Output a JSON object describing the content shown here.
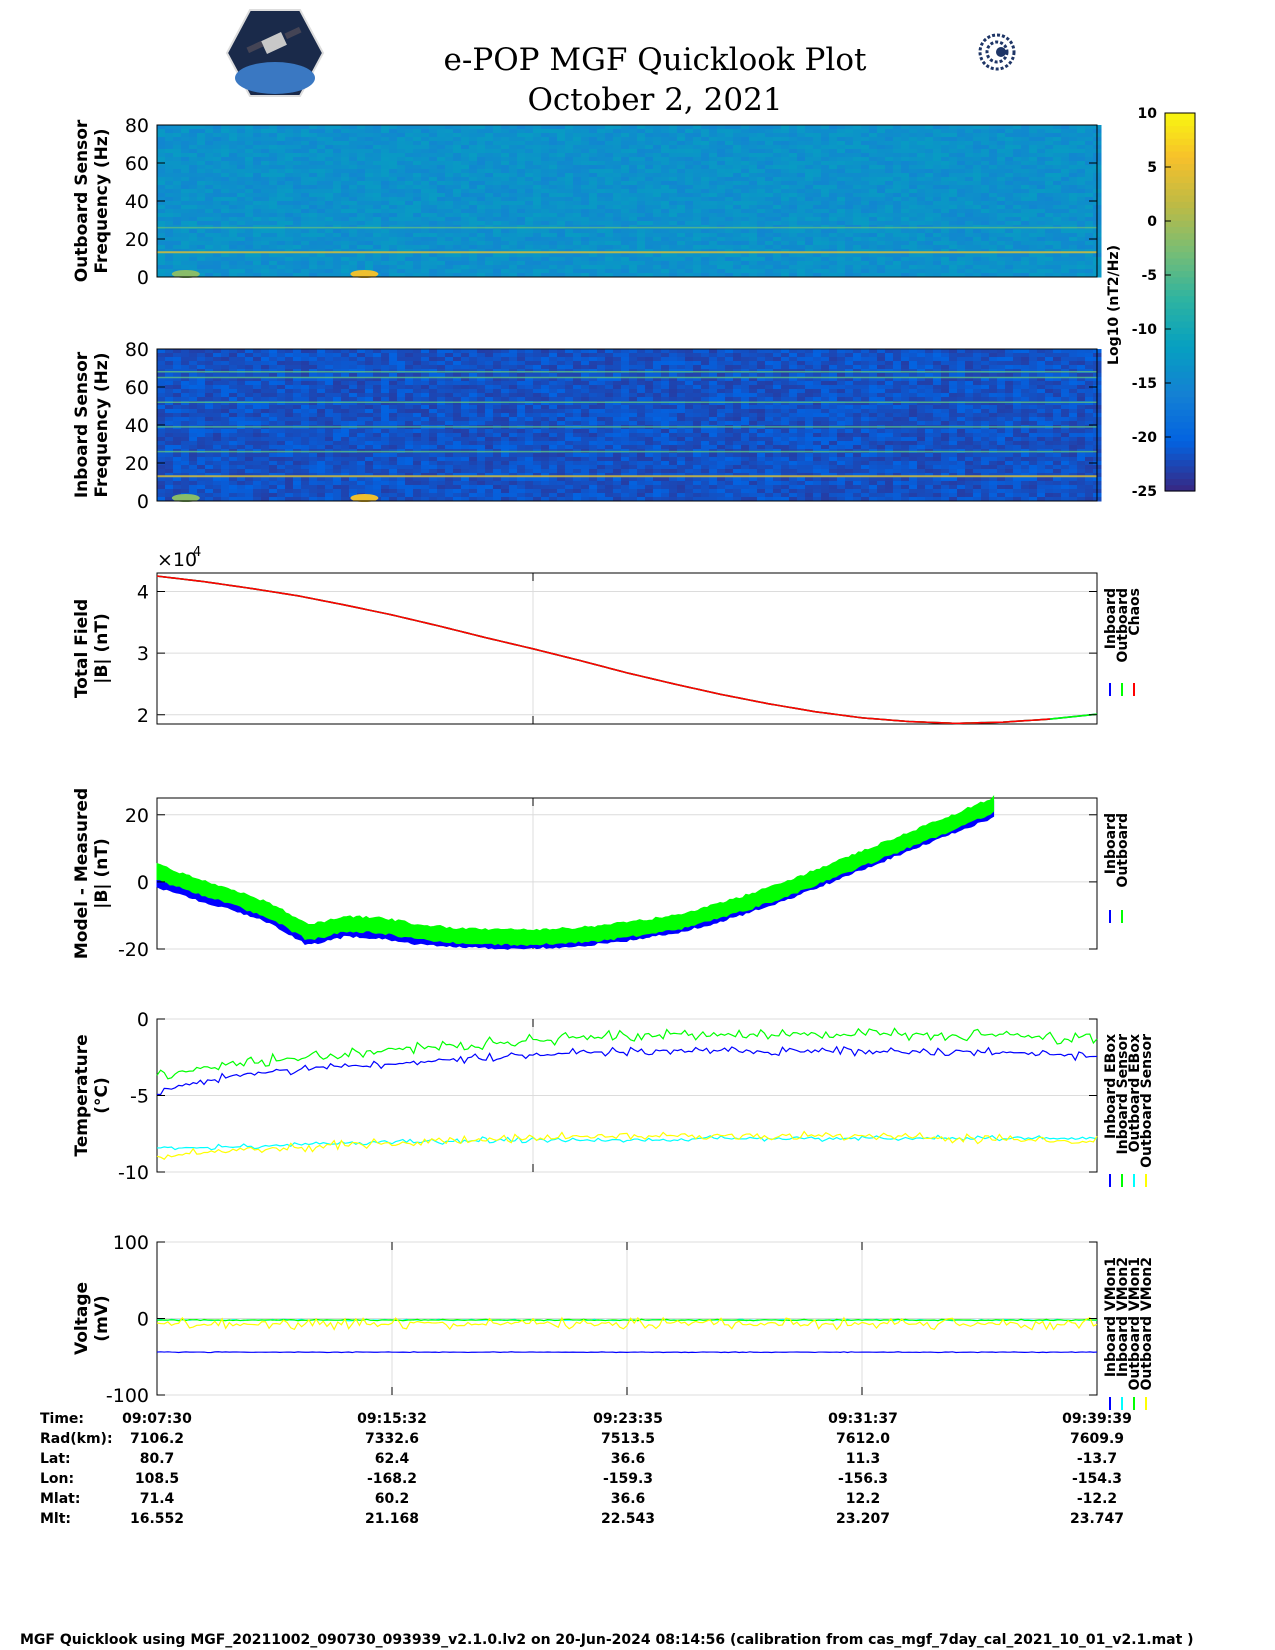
{
  "title": [
    "e-POP MGF Quicklook Plot",
    "October 2, 2021"
  ],
  "colorbar": {
    "ticks": [
      10,
      5,
      0,
      -5,
      -10,
      -15,
      -20,
      -25
    ],
    "label": "Log10 (nT2/Hz)",
    "range": [
      -25,
      10
    ]
  },
  "chart_data": [
    {
      "type": "heatmap",
      "ylabel": [
        "Outboard Sensor",
        "Frequency (Hz)"
      ],
      "ylim": [
        0,
        80
      ],
      "yticks": [
        0,
        20,
        40,
        60,
        80
      ],
      "background_level": -14,
      "horizontal_lines_hz": [
        13,
        26
      ],
      "low_freq_bursts": [
        {
          "t": 0.02,
          "level": -2
        },
        {
          "t": 0.21,
          "level": 5
        }
      ]
    },
    {
      "type": "heatmap",
      "ylabel": [
        "Inboard Sensor",
        "Frequency (Hz)"
      ],
      "ylim": [
        0,
        80
      ],
      "yticks": [
        0,
        20,
        40,
        60,
        80
      ],
      "background_level": -22,
      "horizontal_lines_hz": [
        13,
        26,
        39,
        65,
        52,
        68
      ],
      "low_freq_bursts": [
        {
          "t": 0.02,
          "level": -2
        },
        {
          "t": 0.21,
          "level": 5
        }
      ]
    },
    {
      "type": "line",
      "ylabel": [
        "Total Field",
        "|B| (nT)"
      ],
      "exponent_label": "×10",
      "exponent": "4",
      "ylim": [
        1.85,
        4.3
      ],
      "yticks": [
        2,
        3,
        4
      ],
      "x": [
        0,
        0.05,
        0.1,
        0.15,
        0.2,
        0.25,
        0.3,
        0.35,
        0.4,
        0.45,
        0.5,
        0.55,
        0.6,
        0.65,
        0.7,
        0.75,
        0.8,
        0.85,
        0.9,
        0.95,
        1.0
      ],
      "series": [
        {
          "name": "Inboard",
          "color": "#0000ff",
          "values": [
            4.25,
            4.16,
            4.05,
            3.93,
            3.78,
            3.62,
            3.44,
            3.25,
            3.07,
            2.88,
            2.68,
            2.5,
            2.33,
            2.18,
            2.05,
            1.95,
            1.89,
            1.86,
            1.88,
            1.93,
            2.01
          ]
        },
        {
          "name": "Outboard",
          "color": "#00ff00",
          "values": [
            4.25,
            4.16,
            4.05,
            3.93,
            3.78,
            3.62,
            3.44,
            3.25,
            3.07,
            2.88,
            2.68,
            2.5,
            2.33,
            2.18,
            2.05,
            1.95,
            1.89,
            1.86,
            1.88,
            1.93,
            2.01
          ]
        },
        {
          "name": "Chaos",
          "color": "#ff0000",
          "values": [
            4.25,
            4.16,
            4.05,
            3.93,
            3.78,
            3.62,
            3.44,
            3.25,
            3.07,
            2.88,
            2.68,
            2.5,
            2.33,
            2.18,
            2.05,
            1.95,
            1.89,
            1.86,
            1.88,
            1.93,
            null
          ]
        }
      ],
      "vgrid": [
        0.4
      ]
    },
    {
      "type": "line",
      "ylabel": [
        "Model - Measured",
        "|B| (nT)"
      ],
      "ylim": [
        -20,
        25
      ],
      "yticks": [
        -20,
        0,
        20
      ],
      "x": [
        0,
        0.04,
        0.08,
        0.12,
        0.16,
        0.18,
        0.2,
        0.24,
        0.28,
        0.32,
        0.36,
        0.4,
        0.44,
        0.48,
        0.52,
        0.56,
        0.6,
        0.64,
        0.68,
        0.72,
        0.76,
        0.8,
        0.84,
        0.89
      ],
      "series": [
        {
          "name": "Inboard",
          "color": "#0000ff",
          "band": 3.5,
          "values": [
            0.5,
            -3,
            -6,
            -10,
            -16.5,
            -15.5,
            -14,
            -14.5,
            -16.5,
            -17.2,
            -17.6,
            -17.5,
            -17,
            -16,
            -14.5,
            -12.5,
            -9.5,
            -6,
            -2,
            2.5,
            7,
            11.5,
            16,
            21.5
          ]
        },
        {
          "name": "Outboard",
          "color": "#00ff00",
          "band": 3.5,
          "values": [
            3,
            -1,
            -4.5,
            -8.5,
            -15,
            -14,
            -12.5,
            -13,
            -15,
            -16,
            -16.5,
            -16.5,
            -16,
            -15,
            -13.5,
            -11.5,
            -8.5,
            -5,
            -1,
            3.5,
            8,
            12.5,
            17,
            23
          ]
        }
      ],
      "vgrid": [
        0.4
      ]
    },
    {
      "type": "line",
      "ylabel": [
        "Temperature",
        "(°C)"
      ],
      "ylim": [
        -10,
        0
      ],
      "yticks": [
        -10,
        -5,
        0
      ],
      "x": [
        0,
        0.05,
        0.1,
        0.15,
        0.2,
        0.25,
        0.3,
        0.35,
        0.4,
        0.45,
        0.5,
        0.55,
        0.6,
        0.65,
        0.7,
        0.75,
        0.8,
        0.85,
        0.9,
        0.95,
        1.0
      ],
      "series": [
        {
          "name": "Inboard EBox",
          "color": "#0000ff",
          "jitter": 0.3,
          "values": [
            -4.8,
            -4.0,
            -3.6,
            -3.3,
            -3.1,
            -2.9,
            -2.7,
            -2.5,
            -2.3,
            -2.2,
            -2.1,
            -2.1,
            -2.1,
            -2.1,
            -2.1,
            -2.1,
            -2.1,
            -2.1,
            -2.2,
            -2.3,
            -2.5
          ]
        },
        {
          "name": "Inboard Sensor",
          "color": "#00ff00",
          "jitter": 0.4,
          "values": [
            -3.7,
            -3.2,
            -2.8,
            -2.5,
            -2.2,
            -2.0,
            -1.8,
            -1.6,
            -1.4,
            -1.2,
            -1.1,
            -1.0,
            -1.0,
            -1.0,
            -1.0,
            -1.0,
            -1.0,
            -1.0,
            -1.1,
            -1.2,
            -1.4
          ]
        },
        {
          "name": "Outboard EBox",
          "color": "#00ffff",
          "jitter": 0.2,
          "values": [
            -8.4,
            -8.4,
            -8.3,
            -8.2,
            -8.1,
            -8.0,
            -8.0,
            -7.9,
            -7.9,
            -7.9,
            -7.9,
            -7.9,
            -7.8,
            -7.8,
            -7.8,
            -7.8,
            -7.8,
            -7.8,
            -7.8,
            -7.8,
            -7.8
          ]
        },
        {
          "name": "Outboard Sensor",
          "color": "#ffff00",
          "jitter": 0.35,
          "values": [
            -9.0,
            -8.7,
            -8.5,
            -8.4,
            -8.2,
            -8.1,
            -8.0,
            -7.9,
            -7.8,
            -7.7,
            -7.6,
            -7.6,
            -7.6,
            -7.6,
            -7.6,
            -7.6,
            -7.7,
            -7.8,
            -7.9,
            -8.0,
            -8.0
          ]
        }
      ],
      "vgrid": [
        0.4
      ]
    },
    {
      "type": "line",
      "ylabel": [
        "Voltage",
        "(mV)"
      ],
      "ylim": [
        -100,
        100
      ],
      "yticks": [
        -100,
        0,
        100
      ],
      "x": [
        0,
        0.25,
        0.5,
        0.75,
        1.0
      ],
      "series": [
        {
          "name": "Inboard VMon1",
          "color": "#0000ff",
          "jitter": 0.5,
          "values": [
            -44,
            -44,
            -44,
            -44,
            -44
          ]
        },
        {
          "name": "Inboard VMon2",
          "color": "#00ffff",
          "jitter": 1,
          "values": [
            -2,
            -2,
            -2,
            -2,
            -2
          ]
        },
        {
          "name": "Outboard VMon1",
          "color": "#00ff00",
          "jitter": 1,
          "values": [
            -2,
            -2,
            -2,
            -2,
            -2
          ]
        },
        {
          "name": "Outboard VMon2",
          "color": "#ffff00",
          "jitter": 8,
          "values": [
            -7,
            -7,
            -7,
            -7,
            -7
          ]
        }
      ],
      "vgrid": [
        0.25,
        0.5,
        0.75
      ]
    }
  ],
  "info": {
    "labels": [
      "Time:",
      "Rad(km):",
      "Lat:",
      "Lon:",
      "Mlat:",
      "Mlt:"
    ],
    "columns": [
      [
        "09:07:30",
        "7106.2",
        "80.7",
        "108.5",
        "71.4",
        "16.552"
      ],
      [
        "09:15:32",
        "7332.6",
        "62.4",
        "-168.2",
        "60.2",
        "21.168"
      ],
      [
        "09:23:35",
        "7513.5",
        "36.6",
        "-159.3",
        "36.6",
        "22.543"
      ],
      [
        "09:31:37",
        "7612.0",
        "11.3",
        "-156.3",
        "12.2",
        "23.207"
      ],
      [
        "09:39:39",
        "7609.9",
        "-13.7",
        "-154.3",
        "-12.2",
        "23.747"
      ]
    ]
  },
  "footer": "MGF Quicklook using MGF_20211002_090730_093939_v2.1.0.lv2 on 20-Jun-2024 08:14:56 (calibration from cas_mgf_7day_cal_2021_10_01_v2.1.mat )"
}
